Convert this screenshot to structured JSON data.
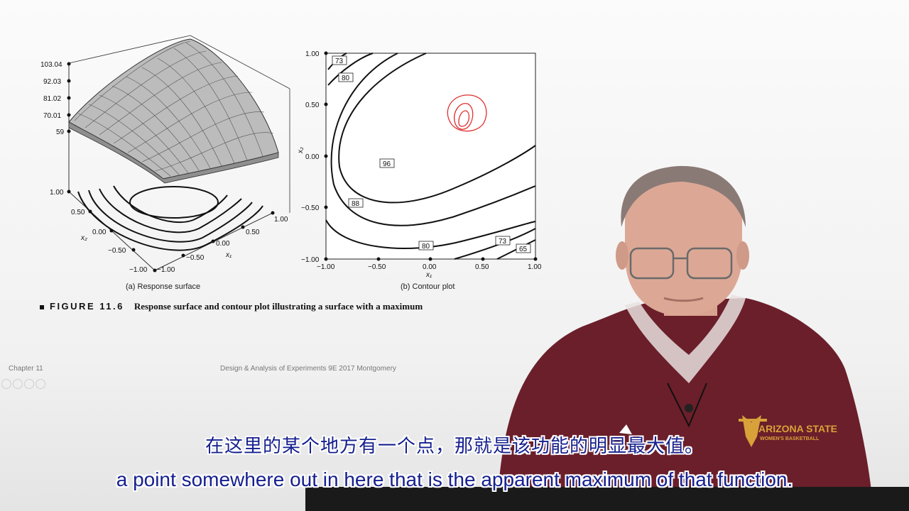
{
  "figure": {
    "number_label": "FIGURE 11.6",
    "title": "Response surface and contour plot illustrating a surface with a maximum",
    "panel_a_caption": "(a) Response surface",
    "panel_b_caption": "(b) Contour plot"
  },
  "surface_plot": {
    "z_ticks": [
      "103.04",
      "92.03",
      "81.02",
      "70.01",
      "59"
    ],
    "x2_ticks": [
      "1.00",
      "0.50",
      "0.00",
      "−0.50",
      "−1.00"
    ],
    "x1_ticks": [
      "−1.00",
      "−0.50",
      "0.00",
      "0.50",
      "1.00"
    ],
    "x1_label": "x₁",
    "x2_label": "x₂"
  },
  "contour_plot": {
    "x_ticks": [
      "−1.00",
      "−0.50",
      "0.00",
      "0.50",
      "1.00"
    ],
    "y_ticks": [
      "1.00",
      "0.50",
      "0.00",
      "−0.50",
      "−1.00"
    ],
    "x_label": "x₁",
    "y_label": "x₂",
    "contour_labels": [
      "73",
      "80",
      "96",
      "88",
      "80",
      "73",
      "65"
    ]
  },
  "footer": {
    "chapter": "Chapter 11",
    "book": "Design & Analysis of Experiments 9E 2017 Montgomery"
  },
  "presenter": {
    "shirt_text_line1": "ARIZONA STATE",
    "shirt_text_line2": "WOMEN'S BASKETBALL"
  },
  "subtitles": {
    "chinese": "在这里的某个地方有一个点，那就是该功能的明显最大值。",
    "english": "a point somewhere out in here that is the apparent maximum of that function."
  },
  "colors": {
    "subtitle": "#16208f",
    "annotation": "#e03030",
    "shirt": "#6b1f2a"
  }
}
